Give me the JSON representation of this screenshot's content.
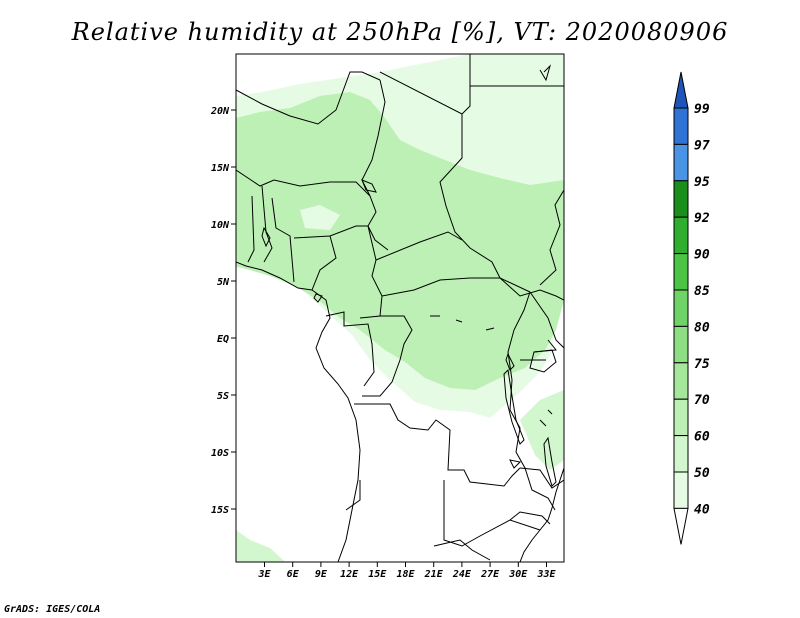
{
  "title": "Relative humidity at 250hPa [%], VT: 2020080906",
  "credit": "GrADS: IGES/COLA",
  "colors": {
    "land_line": "#000000",
    "frame": "#000000",
    "shade_40": "#e6fbe4",
    "shade_50": "#d2f6cd",
    "shade_60": "#bdf0b5",
    "shade_70": "#a5e89c",
    "shade_75": "#8edf84",
    "shade_80": "#6fd468",
    "shade_85": "#4cc547",
    "shade_90": "#2fae2f",
    "shade_92": "#1c8e1c",
    "shade_95": "#4a94e6",
    "shade_97": "#2f73d5",
    "shade_99": "#1e55b8"
  },
  "map": {
    "lat_labels": [
      "20N",
      "15N",
      "10N",
      "5N",
      "EQ",
      "5S",
      "10S",
      "15S"
    ],
    "lon_labels": [
      "3E",
      "6E",
      "9E",
      "12E",
      "15E",
      "18E",
      "21E",
      "24E",
      "27E",
      "30E",
      "33E"
    ],
    "extent": {
      "lon_min": 0,
      "lon_max": 35,
      "lat_min": -20,
      "lat_max": 24
    }
  },
  "colorbar": {
    "levels": [
      "99",
      "97",
      "95",
      "92",
      "90",
      "85",
      "80",
      "75",
      "70",
      "60",
      "50",
      "40"
    ],
    "segment_colors": [
      "#1e55b8",
      "#2f73d5",
      "#4a94e6",
      "#1c8e1c",
      "#2fae2f",
      "#4cc547",
      "#6fd468",
      "#8edf84",
      "#a5e89c",
      "#bdf0b5",
      "#d2f6cd",
      "#e6fbe4",
      "#ffffff"
    ]
  }
}
